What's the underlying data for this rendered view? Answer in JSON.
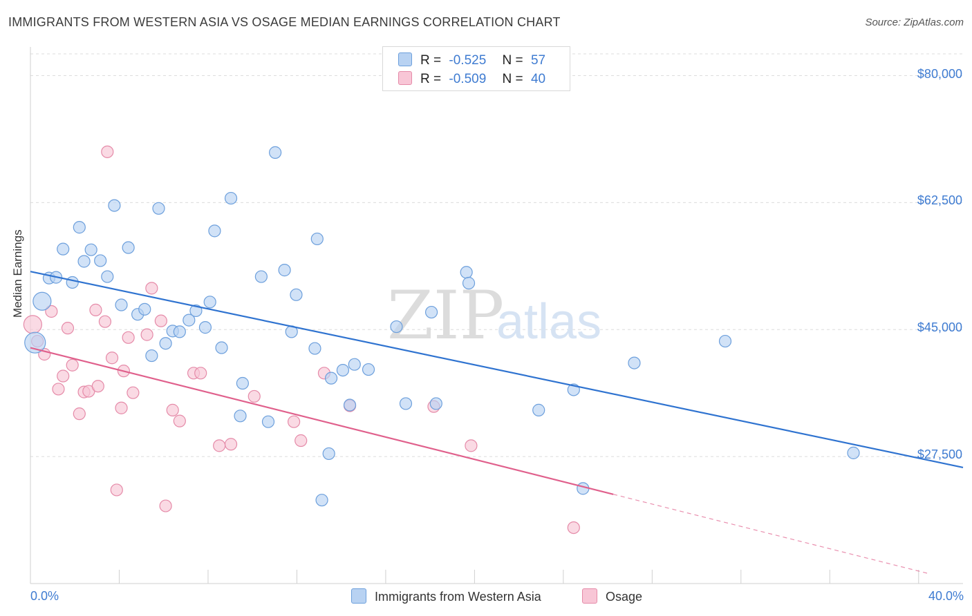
{
  "header": {
    "title": "IMMIGRANTS FROM WESTERN ASIA VS OSAGE MEDIAN EARNINGS CORRELATION CHART",
    "source": "Source: ZipAtlas.com"
  },
  "watermark": {
    "zip": "ZIP",
    "atlas": "atlas"
  },
  "legend": {
    "rows": [
      {
        "r_label": "R =",
        "r_value": "-0.525",
        "n_label": "N =",
        "n_value": "57",
        "color": "#a9c8f0"
      },
      {
        "r_label": "R =",
        "r_value": "-0.509",
        "n_label": "N =",
        "n_value": "40",
        "color": "#f6b8cc"
      }
    ]
  },
  "bottom_legend": {
    "series1": "Immigrants from Western Asia",
    "series2": "Osage"
  },
  "colors": {
    "blue_fill": "#b8d2f2",
    "blue_stroke": "#6c9fdc",
    "blue_line": "#2f73d0",
    "pink_fill": "#f8c6d6",
    "pink_stroke": "#e58aa8",
    "pink_line": "#e0608c",
    "grid": "#dcdcdc",
    "tick_text": "#3e7bd1"
  },
  "chart_data": {
    "type": "scatter",
    "title": "IMMIGRANTS FROM WESTERN ASIA VS OSAGE MEDIAN EARNINGS CORRELATION CHART",
    "ylabel": "Median Earnings",
    "xlabel": "",
    "xlim": [
      0,
      40
    ],
    "ylim": [
      10000,
      83000
    ],
    "x_tick_labels": [
      "0.0%",
      "40.0%"
    ],
    "y_ticks": [
      27500,
      45000,
      62500,
      80000
    ],
    "y_tick_labels": [
      "$27,500",
      "$45,000",
      "$62,500",
      "$80,000"
    ],
    "grid": true,
    "series": [
      {
        "name": "Immigrants from Western Asia",
        "r": -0.525,
        "n": 57,
        "trend": {
          "x0": 0,
          "y0": 53000,
          "x1": 40,
          "y1": 26000
        },
        "points": [
          [
            0.2,
            43.2,
            3
          ],
          [
            0.5,
            48.9,
            2
          ],
          [
            0.8,
            52.1,
            1
          ],
          [
            1.1,
            52.2,
            1
          ],
          [
            1.4,
            56.1,
            1
          ],
          [
            1.8,
            51.5,
            1
          ],
          [
            2.1,
            59.1,
            1
          ],
          [
            2.3,
            54.4,
            1
          ],
          [
            2.6,
            56.0,
            1
          ],
          [
            3.0,
            54.5,
            1
          ],
          [
            3.3,
            52.3,
            1
          ],
          [
            3.6,
            62.1,
            1
          ],
          [
            3.9,
            48.4,
            1
          ],
          [
            4.2,
            56.3,
            1
          ],
          [
            4.6,
            47.1,
            1
          ],
          [
            4.9,
            47.8,
            1
          ],
          [
            5.2,
            41.4,
            1
          ],
          [
            5.5,
            61.7,
            1
          ],
          [
            5.8,
            43.1,
            1
          ],
          [
            6.1,
            44.8,
            1
          ],
          [
            6.4,
            44.7,
            1
          ],
          [
            6.8,
            46.3,
            1
          ],
          [
            7.1,
            47.6,
            1
          ],
          [
            7.5,
            45.3,
            1
          ],
          [
            7.7,
            48.8,
            1
          ],
          [
            7.9,
            58.6,
            1
          ],
          [
            8.2,
            42.5,
            1
          ],
          [
            8.6,
            63.1,
            1
          ],
          [
            9.0,
            33.1,
            1
          ],
          [
            9.1,
            37.6,
            1
          ],
          [
            9.9,
            52.3,
            1
          ],
          [
            10.2,
            32.3,
            1
          ],
          [
            10.5,
            69.4,
            1
          ],
          [
            10.9,
            53.2,
            1
          ],
          [
            11.2,
            44.7,
            1
          ],
          [
            11.4,
            49.8,
            1
          ],
          [
            12.2,
            42.4,
            1
          ],
          [
            12.3,
            57.5,
            1
          ],
          [
            12.5,
            21.5,
            1
          ],
          [
            12.8,
            27.9,
            1
          ],
          [
            12.9,
            38.3,
            1
          ],
          [
            13.4,
            39.4,
            1
          ],
          [
            13.7,
            34.6,
            1
          ],
          [
            13.9,
            40.2,
            1
          ],
          [
            14.5,
            39.5,
            1
          ],
          [
            15.7,
            45.4,
            1
          ],
          [
            16.1,
            34.8,
            1
          ],
          [
            17.2,
            47.4,
            1
          ],
          [
            17.4,
            34.8,
            1
          ],
          [
            18.7,
            52.9,
            1
          ],
          [
            18.8,
            51.4,
            1
          ],
          [
            21.8,
            33.9,
            1
          ],
          [
            23.3,
            36.7,
            1
          ],
          [
            23.7,
            23.1,
            1
          ],
          [
            25.9,
            40.4,
            1
          ],
          [
            29.8,
            43.4,
            1
          ],
          [
            35.3,
            28.0,
            1
          ]
        ]
      },
      {
        "name": "Osage",
        "r": -0.509,
        "n": 40,
        "trend": {
          "x0": 0,
          "y0": 42500,
          "x1": 25,
          "y1": 22300
        },
        "points": [
          [
            0.1,
            45.7,
            2
          ],
          [
            0.3,
            43.4,
            1
          ],
          [
            0.6,
            41.6,
            1
          ],
          [
            0.9,
            47.5,
            1
          ],
          [
            1.2,
            36.8,
            1
          ],
          [
            1.4,
            38.6,
            1
          ],
          [
            1.6,
            45.2,
            1
          ],
          [
            1.8,
            40.1,
            1
          ],
          [
            2.1,
            33.4,
            1
          ],
          [
            2.3,
            36.4,
            1
          ],
          [
            2.5,
            36.5,
            1
          ],
          [
            2.8,
            47.7,
            1
          ],
          [
            2.9,
            37.2,
            1
          ],
          [
            3.2,
            46.1,
            1
          ],
          [
            3.3,
            69.5,
            1
          ],
          [
            3.5,
            41.1,
            1
          ],
          [
            3.7,
            22.9,
            1
          ],
          [
            3.9,
            34.2,
            1
          ],
          [
            4.0,
            39.3,
            1
          ],
          [
            4.2,
            43.9,
            1
          ],
          [
            4.4,
            36.3,
            1
          ],
          [
            5.0,
            44.3,
            1
          ],
          [
            5.2,
            50.7,
            1
          ],
          [
            5.6,
            46.2,
            1
          ],
          [
            5.8,
            20.7,
            1
          ],
          [
            6.1,
            33.9,
            1
          ],
          [
            6.4,
            32.4,
            1
          ],
          [
            7.0,
            39.0,
            1
          ],
          [
            7.3,
            39.0,
            1
          ],
          [
            8.1,
            29.0,
            1
          ],
          [
            8.6,
            29.2,
            1
          ],
          [
            9.6,
            35.8,
            1
          ],
          [
            11.3,
            32.3,
            1
          ],
          [
            11.6,
            29.7,
            1
          ],
          [
            12.6,
            39.0,
            1
          ],
          [
            13.7,
            34.5,
            1
          ],
          [
            17.3,
            34.4,
            1
          ],
          [
            18.9,
            29.0,
            1
          ],
          [
            23.3,
            17.7,
            1
          ]
        ]
      }
    ]
  }
}
